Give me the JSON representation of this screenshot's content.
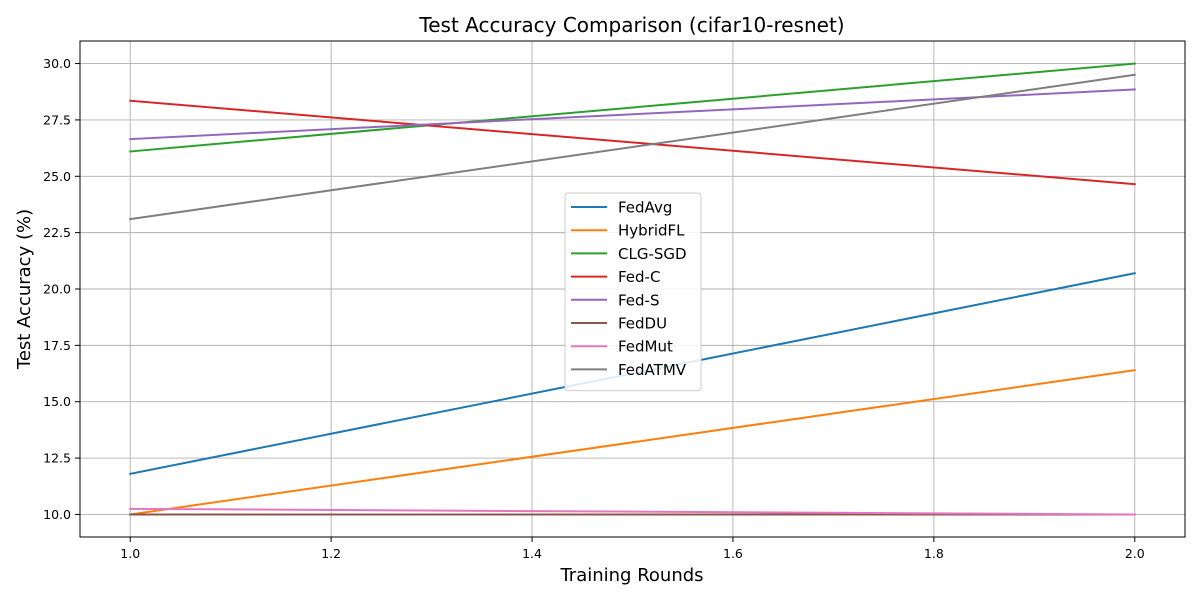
{
  "chart_data": {
    "type": "line",
    "title": "Test Accuracy Comparison (cifar10-resnet)",
    "xlabel": "Training Rounds",
    "ylabel": "Test Accuracy (%)",
    "xlim": [
      0.95,
      2.05
    ],
    "ylim": [
      9.0,
      31.0
    ],
    "xticks": [
      1.0,
      1.2,
      1.4,
      1.6,
      1.8,
      2.0
    ],
    "yticks": [
      10.0,
      12.5,
      15.0,
      17.5,
      20.0,
      22.5,
      25.0,
      27.5,
      30.0
    ],
    "xtick_labels": [
      "1.0",
      "1.2",
      "1.4",
      "1.6",
      "1.8",
      "2.0"
    ],
    "ytick_labels": [
      "10.0",
      "12.5",
      "15.0",
      "17.5",
      "20.0",
      "22.5",
      "25.0",
      "27.5",
      "30.0"
    ],
    "grid": true,
    "legend_position": "center",
    "x": [
      1,
      2
    ],
    "series": [
      {
        "name": "FedAvg",
        "color": "#1f77b4",
        "values": [
          11.8,
          20.7
        ]
      },
      {
        "name": "HybridFL",
        "color": "#ff7f0e",
        "values": [
          10.0,
          16.4
        ]
      },
      {
        "name": "CLG-SGD",
        "color": "#2ca02c",
        "values": [
          26.1,
          30.0
        ]
      },
      {
        "name": "Fed-C",
        "color": "#d62728",
        "values": [
          28.35,
          24.65
        ]
      },
      {
        "name": "Fed-S",
        "color": "#9467bd",
        "values": [
          26.65,
          28.85
        ]
      },
      {
        "name": "FedDU",
        "color": "#8c564b",
        "values": [
          10.0,
          10.0
        ]
      },
      {
        "name": "FedMut",
        "color": "#e377c2",
        "values": [
          10.25,
          10.0
        ]
      },
      {
        "name": "FedATMV",
        "color": "#7f7f7f",
        "values": [
          23.1,
          29.5
        ]
      }
    ]
  }
}
